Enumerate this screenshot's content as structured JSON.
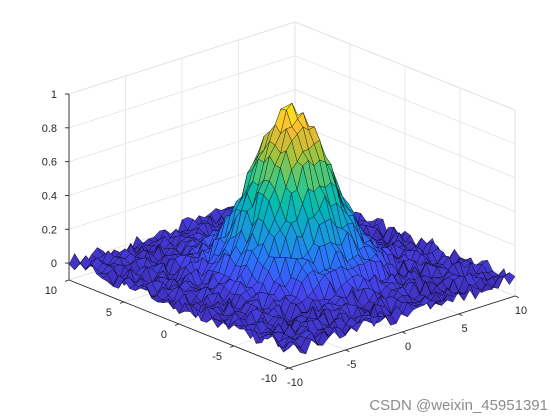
{
  "chart_data": {
    "type": "surface",
    "title": "",
    "xlabel": "",
    "ylabel": "",
    "zlabel": "",
    "xlim": [
      -10,
      10
    ],
    "ylim": [
      -10,
      10
    ],
    "zlim": [
      -0.1,
      1.0
    ],
    "x_ticks": [
      -10,
      -5,
      0,
      5,
      10
    ],
    "y_ticks": [
      -10,
      -5,
      0,
      5,
      10
    ],
    "z_ticks": [
      0,
      0.2,
      0.4,
      0.6,
      0.8,
      1
    ],
    "x_tick_labels": [
      "-10",
      "-5",
      "0",
      "5",
      "10"
    ],
    "y_tick_labels": [
      "-10",
      "-5",
      "0",
      "5",
      "10"
    ],
    "z_tick_labels": [
      "0",
      "0.2",
      "0.4",
      "0.6",
      "0.8",
      "1"
    ],
    "grid": true,
    "colormap": "parula",
    "edge_color": "#000000",
    "surface": {
      "function": "gaussian plus noise",
      "peak_z": 0.95,
      "peak_at": [
        0,
        0
      ],
      "sigma": 2.6,
      "noise_amplitude": 0.05,
      "grid_points": 41
    }
  },
  "watermark": "CSDN @weixin_45951391"
}
